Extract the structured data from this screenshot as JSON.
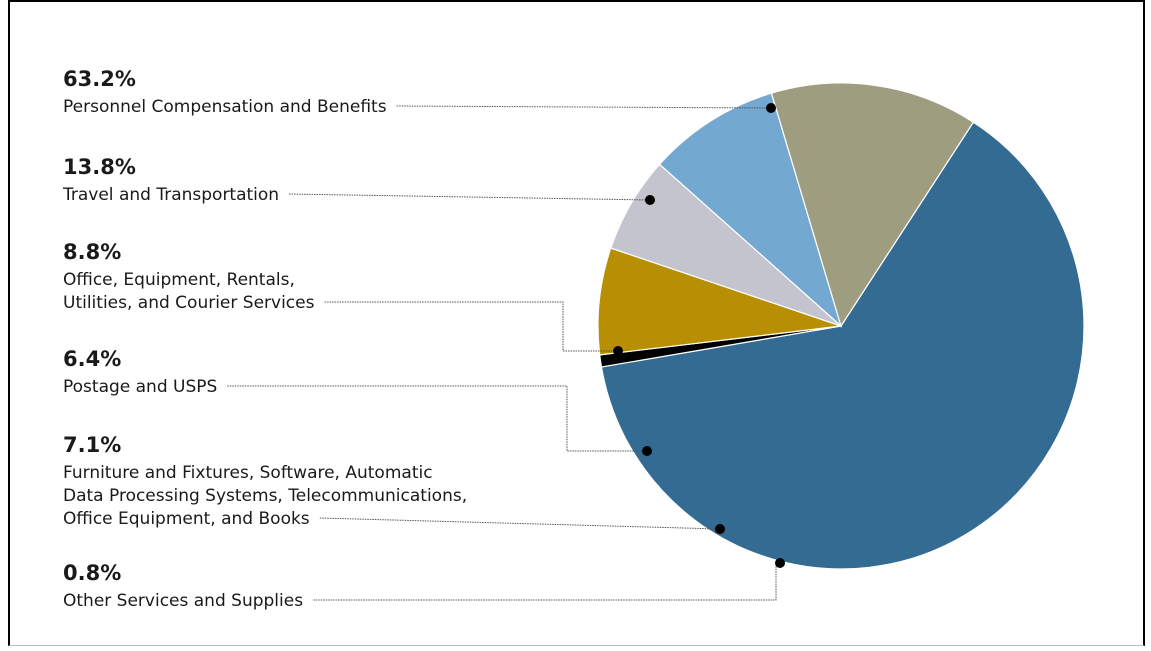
{
  "chart_data": {
    "type": "pie",
    "title": "",
    "slices": [
      {
        "percent_label": "63.2%",
        "value": 63.2,
        "label_lines": [
          "Personnel Compensation and Benefits"
        ],
        "color": "#336b93"
      },
      {
        "percent_label": "13.8%",
        "value": 13.8,
        "label_lines": [
          "Travel and Transportation"
        ],
        "color": "#9e9d80"
      },
      {
        "percent_label": "8.8%",
        "value": 8.8,
        "label_lines": [
          "Office, Equipment, Rentals,",
          "Utilities, and Courier Services"
        ],
        "color": "#73a8d1"
      },
      {
        "percent_label": "6.4%",
        "value": 6.4,
        "label_lines": [
          "Postage and USPS"
        ],
        "color": "#c4c4cf"
      },
      {
        "percent_label": "7.1%",
        "value": 7.1,
        "label_lines": [
          "Furniture and Fixtures, Software, Automatic",
          "Data Processing Systems, Telecommunications,",
          "Office Equipment, and Books"
        ],
        "color": "#b88f02"
      },
      {
        "percent_label": "0.8%",
        "value": 0.8,
        "label_lines": [
          "Other Services and Supplies"
        ],
        "color": "#000000"
      }
    ],
    "legend": "left, with leader lines"
  }
}
